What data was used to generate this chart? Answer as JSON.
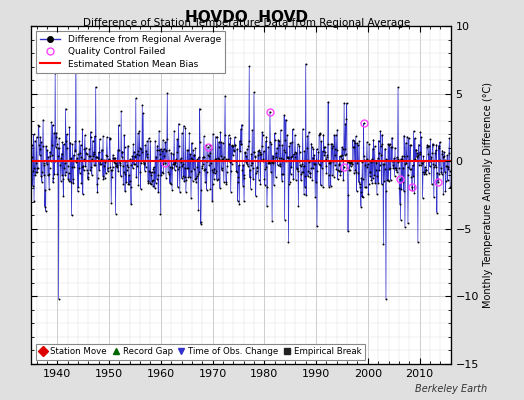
{
  "title": "HOVDO  HOVD",
  "subtitle": "Difference of Station Temperature Data from Regional Average",
  "ylabel": "Monthly Temperature Anomaly Difference (°C)",
  "xlim": [
    1935,
    2016
  ],
  "ylim": [
    -15,
    10
  ],
  "yticks": [
    -15,
    -10,
    -5,
    0,
    5,
    10
  ],
  "xticks": [
    1940,
    1950,
    1960,
    1970,
    1980,
    1990,
    2000,
    2010
  ],
  "bg_color": "#e0e0e0",
  "plot_bg_color": "#ffffff",
  "line_color": "#3333cc",
  "marker_color": "#000000",
  "bias_color": "#ff0000",
  "qc_color": "#ff44ff",
  "watermark": "Berkeley Earth",
  "legend_entries": [
    "Difference from Regional Average",
    "Quality Control Failed",
    "Estimated Station Mean Bias"
  ],
  "bottom_legend_labels": [
    "Station Move",
    "Record Gap",
    "Time of Obs. Change",
    "Empirical Break"
  ],
  "bottom_legend_colors": [
    "#dd0000",
    "#006600",
    "#3333cc",
    "#222222"
  ],
  "bottom_legend_markers": [
    "D",
    "^",
    "v",
    "s"
  ],
  "seed": 123,
  "n_years_start": 1935,
  "n_years_end": 2015,
  "bias_value": 0.05
}
